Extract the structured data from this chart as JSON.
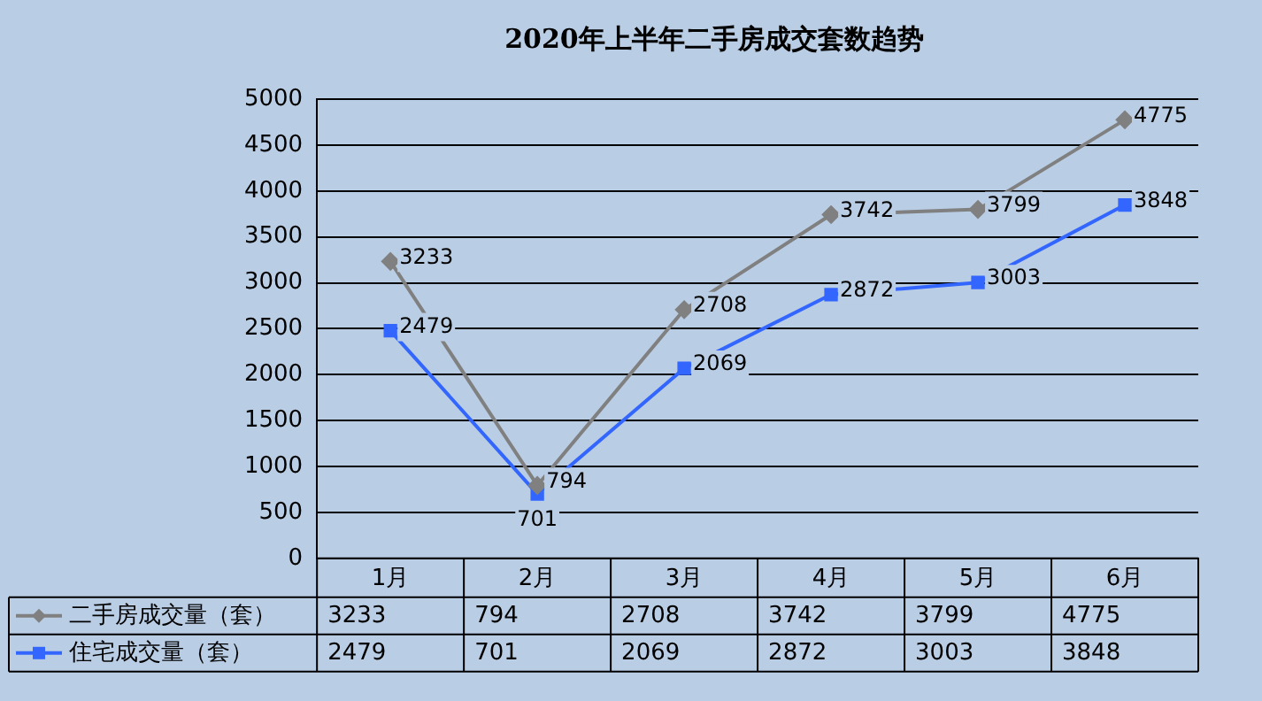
{
  "chart_data": {
    "type": "line",
    "title": "2020年上半年二手房成交套数趋势",
    "categories": [
      "1月",
      "2月",
      "3月",
      "4月",
      "5月",
      "6月"
    ],
    "series": [
      {
        "name": "二手房成交量（套）",
        "color": "#808080",
        "marker": "diamond",
        "values": [
          3233,
          794,
          2708,
          3742,
          3799,
          4775
        ],
        "value_labels": [
          "3233",
          "794",
          "2708",
          "3742",
          "3799",
          "4775"
        ]
      },
      {
        "name": "住宅成交量（套）",
        "color": "#3366ff",
        "marker": "square",
        "values": [
          2479,
          701,
          2069,
          2872,
          3003,
          3848
        ],
        "value_labels": [
          "2479",
          "701",
          "2069",
          "2872",
          "3003",
          "3848"
        ]
      }
    ],
    "ylim": [
      0,
      5000
    ],
    "yticks": [
      0,
      500,
      1000,
      1500,
      2000,
      2500,
      3000,
      3500,
      4000,
      4500,
      5000
    ],
    "annotations": [
      "3233",
      "794",
      "2708",
      "3742",
      "3799",
      "4775",
      "2479",
      "701",
      "2069",
      "2872",
      "3003",
      "3848"
    ],
    "grid": "y",
    "legend": "bottom",
    "data_labels": true,
    "line_style": "solid"
  }
}
